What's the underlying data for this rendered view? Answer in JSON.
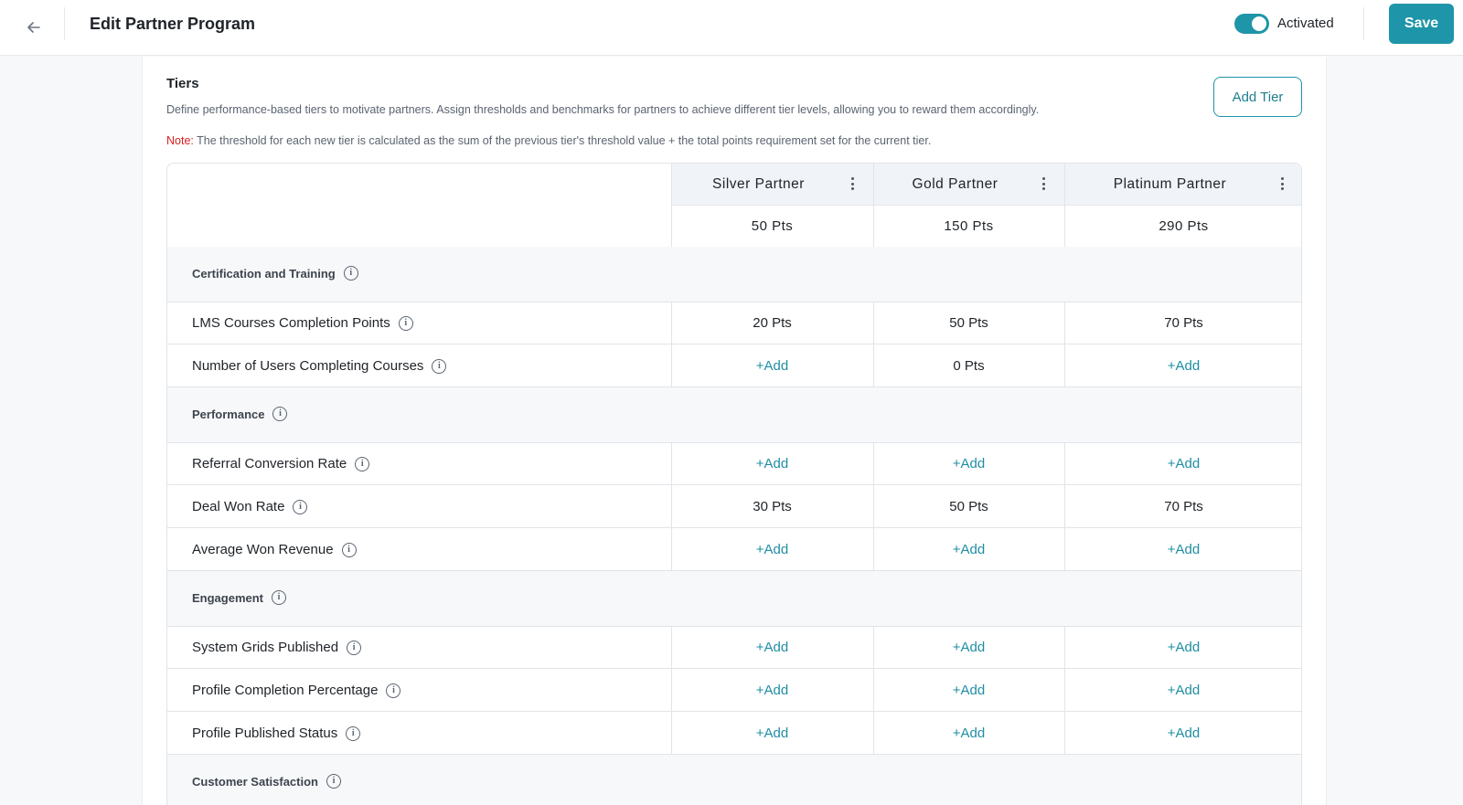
{
  "header": {
    "title": "Edit Partner Program",
    "status_label": "Activated",
    "save_label": "Save"
  },
  "tiers_section": {
    "title": "Tiers",
    "description": "Define performance-based tiers to motivate partners. Assign thresholds and benchmarks for partners to achieve different tier levels, allowing you to reward them accordingly.",
    "note_label": "Note:",
    "note_text": " The threshold for each new tier is calculated as the sum of the previous tier's threshold value + the total points requirement set for the current tier.",
    "add_tier_label": "Add Tier"
  },
  "tiers": [
    {
      "name": "Silver Partner",
      "threshold": "50 Pts"
    },
    {
      "name": "Gold Partner",
      "threshold": "150 Pts"
    },
    {
      "name": "Platinum Partner",
      "threshold": "290 Pts"
    }
  ],
  "categories": [
    {
      "name": "Certification and Training",
      "rows": [
        {
          "label": "LMS Courses Completion Points",
          "values": [
            "20 Pts",
            "50 Pts",
            "70 Pts"
          ]
        },
        {
          "label": "Number of Users Completing Courses",
          "values": [
            "+Add",
            "0 Pts",
            "+Add"
          ]
        }
      ]
    },
    {
      "name": "Performance",
      "rows": [
        {
          "label": "Referral Conversion Rate",
          "values": [
            "+Add",
            "+Add",
            "+Add"
          ]
        },
        {
          "label": "Deal Won Rate",
          "values": [
            "30 Pts",
            "50 Pts",
            "70 Pts"
          ]
        },
        {
          "label": "Average Won Revenue",
          "values": [
            "+Add",
            "+Add",
            "+Add"
          ]
        }
      ]
    },
    {
      "name": "Engagement",
      "rows": [
        {
          "label": "System Grids Published",
          "values": [
            "+Add",
            "+Add",
            "+Add"
          ]
        },
        {
          "label": "Profile Completion Percentage",
          "values": [
            "+Add",
            "+Add",
            "+Add"
          ]
        },
        {
          "label": "Profile Published Status",
          "values": [
            "+Add",
            "+Add",
            "+Add"
          ]
        }
      ]
    },
    {
      "name": "Customer Satisfaction",
      "rows": []
    }
  ],
  "icons": {
    "back": "arrow-left-icon",
    "info": "info-icon",
    "menu": "kebab-menu-icon"
  },
  "colors": {
    "accent": "#1e95a8",
    "note": "#d92020",
    "header_bg": "#f0f4f9",
    "category_bg": "#f7f8fa"
  }
}
